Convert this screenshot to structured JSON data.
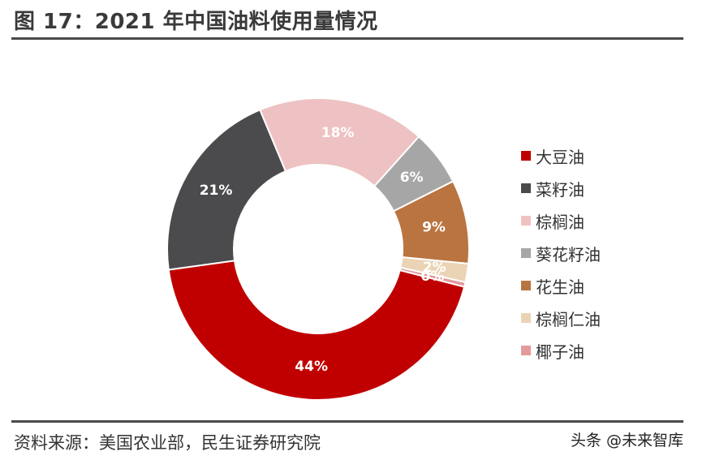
{
  "header": {
    "title": "图 17：2021 年中国油料使用量情况"
  },
  "footer": {
    "source": "资料来源：美国农业部，民生证券研究院",
    "watermark": "头条 @未来智库"
  },
  "chart_data": {
    "type": "pie",
    "variant": "donut",
    "title": "图 17：2021 年中国油料使用量情况",
    "legend_position": "right",
    "slices": [
      {
        "label": "大豆油",
        "value": 44,
        "display": "44%",
        "color": "#C00000"
      },
      {
        "label": "菜籽油",
        "value": 21,
        "display": "21%",
        "color": "#4B4B4D"
      },
      {
        "label": "棕榈油",
        "value": 18,
        "display": "18%",
        "color": "#EEC2C2"
      },
      {
        "label": "葵花籽油",
        "value": 6,
        "display": "6%",
        "color": "#A6A6A6"
      },
      {
        "label": "花生油",
        "value": 9,
        "display": "9%",
        "color": "#BA7440"
      },
      {
        "label": "棕榈仁油",
        "value": 2,
        "display": "2%",
        "color": "#EBD3B5"
      },
      {
        "label": "椰子油",
        "value": 0.5,
        "display": "0%",
        "color": "#E49A9A"
      }
    ]
  }
}
